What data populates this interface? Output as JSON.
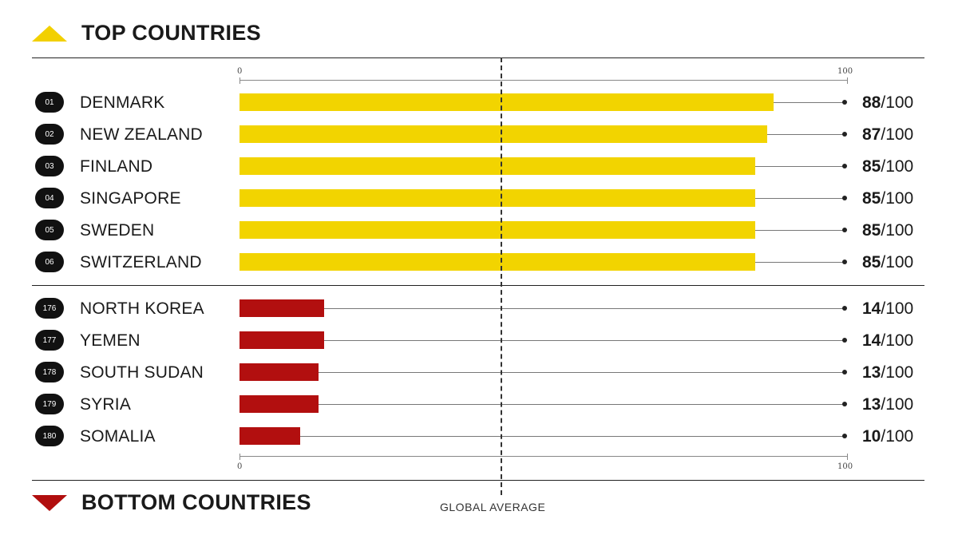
{
  "header_top": "TOP COUNTRIES",
  "header_bottom": "BOTTOM COUNTRIES",
  "avg_label": "GLOBAL AVERAGE",
  "colors": {
    "top": "#f2d400",
    "bottom": "#b20f0f"
  },
  "chart_data": {
    "type": "bar",
    "orientation": "horizontal",
    "xlim": [
      0,
      100
    ],
    "ticks": [
      "0",
      "100"
    ],
    "max_label": "/100",
    "groups": [
      {
        "name": "TOP COUNTRIES",
        "color": "#f2d400",
        "items": [
          {
            "rank": "01",
            "country": "DENMARK",
            "score": 88
          },
          {
            "rank": "02",
            "country": "NEW ZEALAND",
            "score": 87
          },
          {
            "rank": "03",
            "country": "FINLAND",
            "score": 85
          },
          {
            "rank": "04",
            "country": "SINGAPORE",
            "score": 85
          },
          {
            "rank": "05",
            "country": "SWEDEN",
            "score": 85
          },
          {
            "rank": "06",
            "country": "SWITZERLAND",
            "score": 85
          }
        ]
      },
      {
        "name": "BOTTOM COUNTRIES",
        "color": "#b20f0f",
        "items": [
          {
            "rank": "176",
            "country": "NORTH KOREA",
            "score": 14
          },
          {
            "rank": "177",
            "country": "YEMEN",
            "score": 14
          },
          {
            "rank": "178",
            "country": "SOUTH SUDAN",
            "score": 13
          },
          {
            "rank": "179",
            "country": "SYRIA",
            "score": 13
          },
          {
            "rank": "180",
            "country": "SOMALIA",
            "score": 10
          }
        ]
      }
    ],
    "global_average": 43
  }
}
